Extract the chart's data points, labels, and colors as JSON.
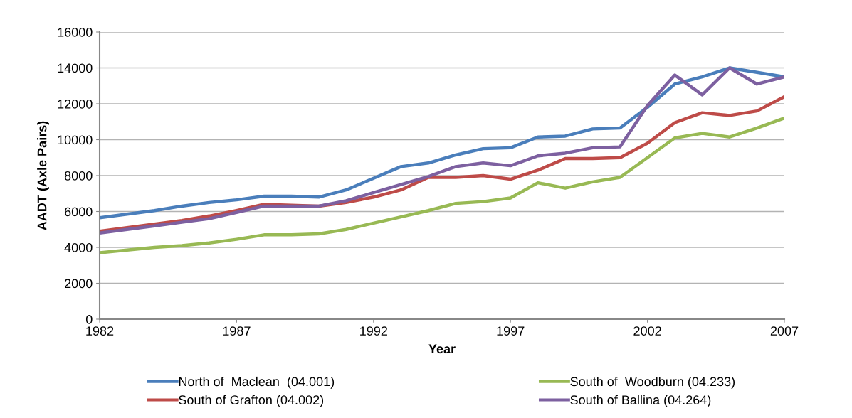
{
  "chart_data": {
    "type": "line",
    "xlabel": "Year",
    "ylabel": "AADT (Axle Pairs)",
    "x": [
      1982,
      1983,
      1984,
      1985,
      1986,
      1987,
      1988,
      1989,
      1990,
      1991,
      1992,
      1993,
      1994,
      1995,
      1996,
      1997,
      1998,
      1999,
      2000,
      2001,
      2002,
      2003,
      2004,
      2005,
      2006,
      2007
    ],
    "series": [
      {
        "name": "North of  Maclean  (04.001)",
        "color": "#4a7ebb",
        "values": [
          5650,
          5850,
          6050,
          6300,
          6500,
          6650,
          6850,
          6850,
          6800,
          7200,
          7850,
          8500,
          8700,
          9150,
          9500,
          9550,
          10150,
          10200,
          10600,
          10650,
          11800,
          13100,
          13500,
          14000,
          13750,
          13500
        ]
      },
      {
        "name": "South of Grafton (04.002)",
        "color": "#be4b48",
        "values": [
          4900,
          5100,
          5300,
          5500,
          5750,
          6050,
          6400,
          6350,
          6300,
          6500,
          6800,
          7200,
          7900,
          7900,
          8000,
          7800,
          8300,
          8950,
          8950,
          9000,
          9800,
          10950,
          11500,
          11350,
          11600,
          12400
        ]
      },
      {
        "name": "South of  Woodburn (04.233)",
        "color": "#98b954",
        "values": [
          3700,
          3850,
          4000,
          4100,
          4250,
          4450,
          4700,
          4700,
          4750,
          5000,
          5350,
          5700,
          6050,
          6450,
          6550,
          6750,
          7600,
          7300,
          7650,
          7900,
          9000,
          10100,
          10350,
          10150,
          10650,
          11200
        ]
      },
      {
        "name": "South of Ballina (04.264)",
        "color": "#7d60a0",
        "values": [
          4800,
          5000,
          5200,
          5400,
          5600,
          5950,
          6300,
          6300,
          6300,
          6600,
          7050,
          7500,
          7950,
          8500,
          8700,
          8550,
          9100,
          9250,
          9550,
          9600,
          11900,
          13600,
          12500,
          14000,
          13100,
          13500
        ]
      }
    ],
    "xlim": [
      1982,
      2007
    ],
    "xticks": [
      1982,
      1987,
      1992,
      1997,
      2002,
      2007
    ],
    "ylim": [
      0,
      16000
    ],
    "yticks": [
      0,
      2000,
      4000,
      6000,
      8000,
      10000,
      12000,
      14000,
      16000
    ],
    "grid": "y",
    "legend": "bottom",
    "marker": "none",
    "line_style": "solid"
  }
}
